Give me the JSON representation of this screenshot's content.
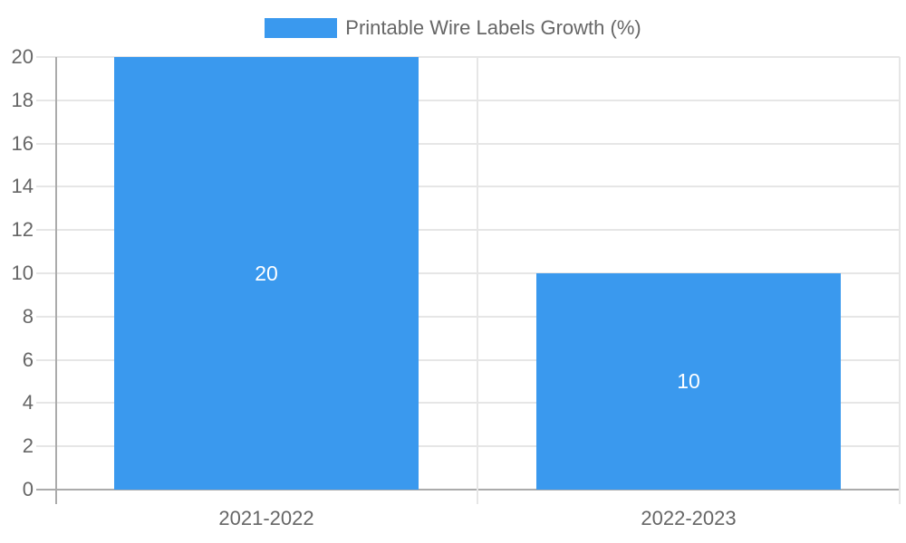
{
  "legend": {
    "label": "Printable Wire Labels Growth (%)"
  },
  "chart_data": {
    "type": "bar",
    "title": "",
    "series_name": "Printable Wire Labels Growth (%)",
    "categories": [
      "2021-2022",
      "2022-2023"
    ],
    "values": [
      20,
      10
    ],
    "bar_value_labels": [
      "20",
      "10"
    ],
    "xlabel": "",
    "ylabel": "",
    "ylim": [
      0,
      20
    ],
    "yticks": [
      0,
      2,
      4,
      6,
      8,
      10,
      12,
      14,
      16,
      18,
      20
    ],
    "grid": true,
    "legend_position": "top",
    "bar_percentage_of_category": 0.72,
    "colors": {
      "bar": "#3a99ee",
      "bar_value_label": "#ffffff",
      "axis_text": "#666666",
      "gridline": "#e6e6e6",
      "axis_line": "#ababab",
      "background": "#ffffff"
    }
  }
}
